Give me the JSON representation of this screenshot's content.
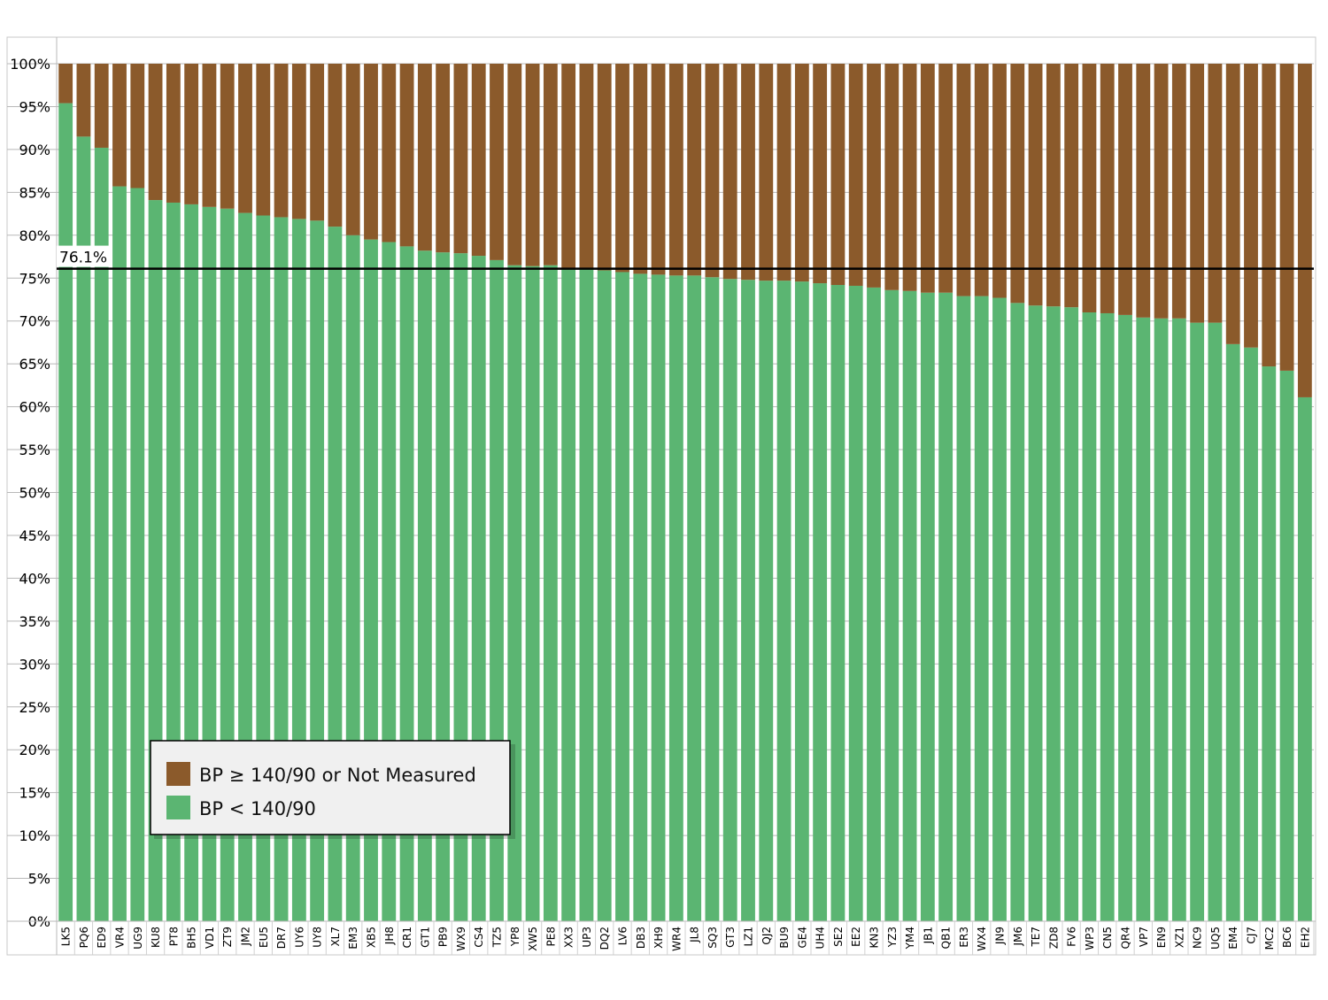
{
  "chart_data": {
    "type": "bar",
    "stacked": true,
    "percent_stacked": true,
    "title": "",
    "xlabel": "",
    "ylabel": "",
    "ylim": [
      0,
      100
    ],
    "y_ticks": [
      "0%",
      "5%",
      "10%",
      "15%",
      "20%",
      "25%",
      "30%",
      "35%",
      "40%",
      "45%",
      "50%",
      "55%",
      "60%",
      "65%",
      "70%",
      "75%",
      "80%",
      "85%",
      "90%",
      "95%",
      "100%"
    ],
    "grid": true,
    "legend_position": "bottom-left",
    "categories": [
      "LK5",
      "PQ6",
      "ED9",
      "VR4",
      "UG9",
      "KU8",
      "PT8",
      "BH5",
      "VD1",
      "ZT9",
      "JM2",
      "EU5",
      "DR7",
      "UY6",
      "UY8",
      "XL7",
      "EM3",
      "XB5",
      "JH8",
      "CR1",
      "GT1",
      "PB9",
      "WX9",
      "CS4",
      "TZ5",
      "YP8",
      "XW5",
      "PE8",
      "XX3",
      "UP3",
      "DQ2",
      "LV6",
      "DB3",
      "XH9",
      "WR4",
      "JL8",
      "SQ3",
      "GT3",
      "LZ1",
      "QJ2",
      "BU9",
      "GE4",
      "UH4",
      "SE2",
      "EE2",
      "KN3",
      "YZ3",
      "YM4",
      "JB1",
      "QB1",
      "ER3",
      "WX4",
      "JN9",
      "JM6",
      "TE7",
      "ZD8",
      "FV6",
      "WP3",
      "CN5",
      "QR4",
      "VP7",
      "EN9",
      "XZ1",
      "NC9",
      "UQ5",
      "EM4",
      "CJ7",
      "MC2",
      "BC6",
      "EH2"
    ],
    "series": [
      {
        "name": "BP < 140/90",
        "color": "#5bb572",
        "values": [
          95.4,
          91.5,
          90.2,
          85.7,
          85.5,
          84.1,
          83.8,
          83.6,
          83.3,
          83.1,
          82.6,
          82.3,
          82.1,
          81.9,
          81.7,
          81.0,
          80.0,
          79.5,
          79.2,
          78.7,
          78.2,
          78.0,
          77.9,
          77.6,
          77.1,
          76.5,
          76.4,
          76.5,
          76.1,
          76.0,
          75.9,
          75.7,
          75.5,
          75.4,
          75.3,
          75.3,
          75.1,
          74.9,
          74.8,
          74.7,
          74.7,
          74.6,
          74.4,
          74.2,
          74.1,
          73.9,
          73.6,
          73.5,
          73.3,
          73.3,
          72.9,
          72.9,
          72.7,
          72.1,
          71.8,
          71.7,
          71.6,
          71.0,
          70.9,
          70.7,
          70.4,
          70.3,
          70.3,
          69.8,
          69.8,
          67.3,
          66.9,
          64.7,
          64.2,
          61.1
        ]
      },
      {
        "name": "BP ≥ 140/90 or Not Measured",
        "color": "#8b5a2b",
        "values": [
          4.6,
          8.5,
          9.8,
          14.3,
          14.5,
          15.9,
          16.2,
          16.4,
          16.7,
          16.9,
          17.4,
          17.7,
          17.9,
          18.1,
          18.3,
          19.0,
          20.0,
          20.5,
          20.8,
          21.3,
          21.8,
          22.0,
          22.1,
          22.4,
          22.9,
          23.5,
          23.6,
          23.5,
          23.9,
          24.0,
          24.1,
          24.3,
          24.5,
          24.6,
          24.7,
          24.7,
          24.9,
          25.1,
          25.2,
          25.3,
          25.3,
          25.4,
          25.6,
          25.8,
          25.9,
          26.1,
          26.4,
          26.5,
          26.7,
          26.7,
          27.1,
          27.1,
          27.3,
          27.9,
          28.2,
          28.3,
          28.4,
          29.0,
          29.1,
          29.3,
          29.6,
          29.7,
          29.7,
          30.2,
          30.2,
          32.7,
          33.1,
          35.3,
          35.8,
          38.9
        ]
      }
    ],
    "reference_line": {
      "value": 76.1,
      "label": "76.1%",
      "color": "#000000"
    },
    "legend": [
      {
        "label": "BP ≥ 140/90 or Not Measured",
        "color": "#8b5a2b"
      },
      {
        "label": "BP < 140/90",
        "color": "#5bb572"
      }
    ]
  }
}
